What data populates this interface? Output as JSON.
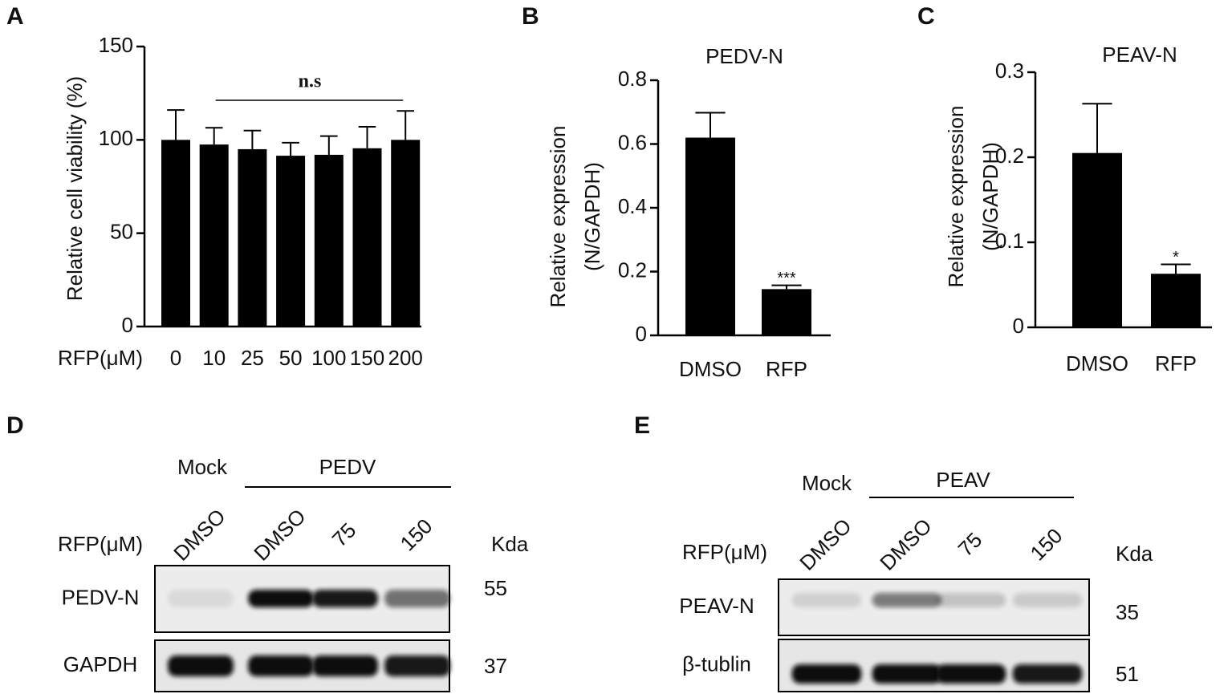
{
  "chart_data": [
    {
      "type": "bar",
      "panel": "A",
      "ylabel": "Relative cell viability (%)",
      "xlabel": "RFP(μM)",
      "annotation": "n.s",
      "color": "#000000",
      "categories": [
        "0",
        "10",
        "25",
        "50",
        "100",
        "150",
        "200"
      ],
      "values": [
        100,
        97.5,
        95,
        91.5,
        92,
        95.5,
        100
      ],
      "errors": [
        16,
        9,
        10,
        7,
        10,
        11.5,
        15.5
      ],
      "ylim": [
        0,
        150
      ],
      "yticks": [
        0,
        50,
        100,
        150
      ]
    },
    {
      "type": "bar",
      "panel": "B",
      "title": "PEDV-N",
      "ylabel": [
        "Relative expression",
        "(N/GAPDH)"
      ],
      "color": "#000000",
      "categories": [
        "DMSO",
        "RFP"
      ],
      "values": [
        0.62,
        0.145
      ],
      "errors": [
        0.078,
        0.012
      ],
      "significance": [
        null,
        "***"
      ],
      "ylim": [
        0,
        0.8
      ],
      "yticks": [
        0,
        0.2,
        0.4,
        0.6,
        0.8
      ]
    },
    {
      "type": "bar",
      "panel": "C",
      "title": "PEAV-N",
      "ylabel": [
        "Relative expression",
        "(N/GAPDH)"
      ],
      "color": "#000000",
      "categories": [
        "DMSO",
        "RFP"
      ],
      "values": [
        0.205,
        0.063
      ],
      "errors": [
        0.058,
        0.011
      ],
      "significance": [
        null,
        "*"
      ],
      "ylim": [
        0,
        0.3
      ],
      "yticks": [
        0,
        0.1,
        0.2,
        0.3
      ]
    }
  ],
  "blots": [
    {
      "panel": "D",
      "groups": [
        "Mock",
        "PEDV"
      ],
      "treatment": "RFP(μM)",
      "lanes": [
        "DMSO",
        "DMSO",
        "75",
        "150"
      ],
      "unit": "Kda",
      "rows": [
        {
          "name": "PEDV-N",
          "kda": 55
        },
        {
          "name": "GAPDH",
          "kda": 37
        }
      ]
    },
    {
      "panel": "E",
      "groups": [
        "Mock",
        "PEAV"
      ],
      "treatment": "RFP(μM)",
      "lanes": [
        "DMSO",
        "DMSO",
        "75",
        "150"
      ],
      "unit": "Kda",
      "rows": [
        {
          "name": "PEAV-N",
          "kda": 35
        },
        {
          "name": "β-tublin",
          "kda": 51
        }
      ]
    }
  ]
}
